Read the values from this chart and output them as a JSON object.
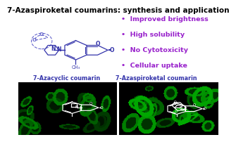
{
  "title": "7-Azaspiroketal coumarins: synthesis and application",
  "title_fontsize": 7.5,
  "title_color": "#000000",
  "bullet_points": [
    "Improved brightness",
    "High solubility",
    "No Cytotoxicity",
    "Cellular uptake"
  ],
  "bullet_color": "#9922cc",
  "bullet_fontsize": 6.8,
  "label_left": "7-Azacyclic coumarin",
  "label_right": "7-Azaspiroketal coumarin",
  "label_color": "#3333aa",
  "label_fontsize": 5.8,
  "background_color": "#ffffff",
  "dashed_circle_color": "#6666cc",
  "structure_color": "#3333aa",
  "struct_lw": 0.9,
  "dashed_lw": 0.8
}
